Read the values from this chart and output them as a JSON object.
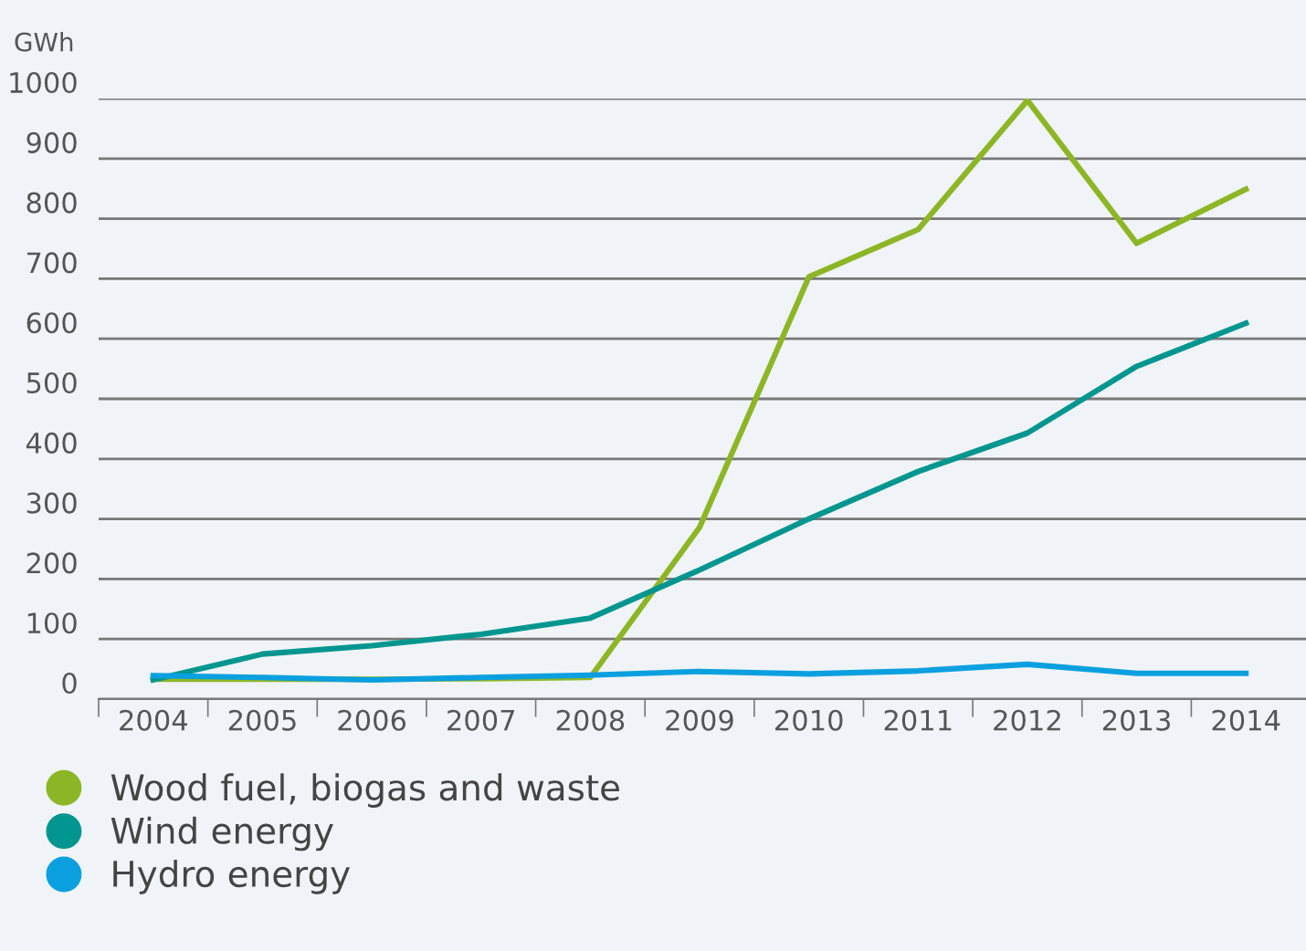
{
  "chart_data": {
    "type": "line",
    "ylabel": "GWh",
    "categories": [
      "2004",
      "2005",
      "2006",
      "2007",
      "2008",
      "2009",
      "2010",
      "2011",
      "2012",
      "2013",
      "2014"
    ],
    "series": [
      {
        "name": "Wood fuel, biogas and waste",
        "color": "#8db626",
        "values": [
          33,
          33,
          33,
          34,
          36,
          286,
          703,
          782,
          997,
          759,
          849
        ]
      },
      {
        "name": "Wind energy",
        "color": "#00968f",
        "values": [
          32,
          75,
          89,
          108,
          135,
          215,
          300,
          379,
          443,
          554,
          626
        ]
      },
      {
        "name": "Hydro energy",
        "color": "#0aa0e0",
        "values": [
          39,
          36,
          32,
          36,
          40,
          46,
          42,
          47,
          58,
          43,
          43
        ]
      }
    ],
    "ylim": [
      0,
      1000
    ],
    "yticks": [
      0,
      100,
      200,
      300,
      400,
      500,
      600,
      700,
      800,
      900,
      1000
    ],
    "grid": "y",
    "legend": "bottom left",
    "marker": "none",
    "line_style": "solid"
  }
}
